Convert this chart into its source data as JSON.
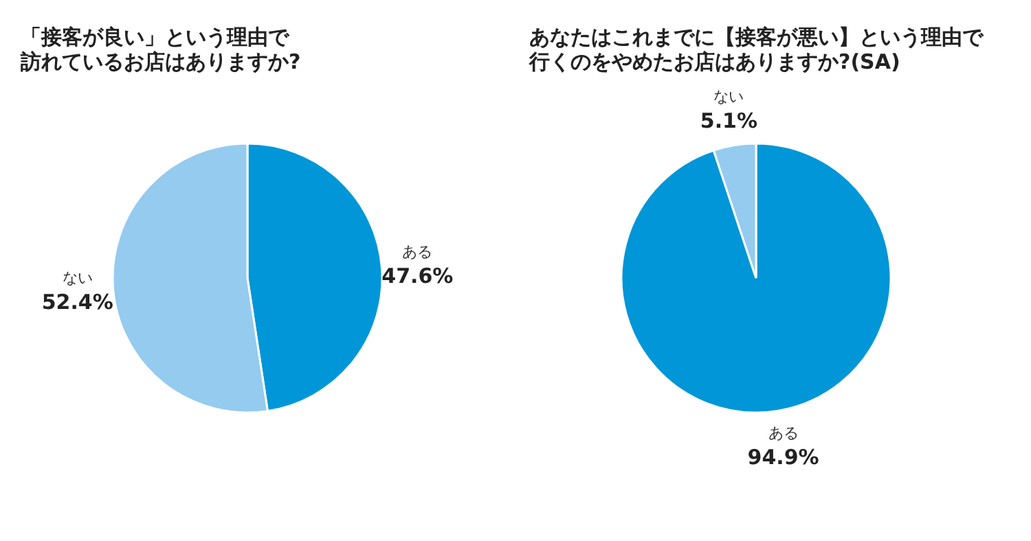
{
  "chart_data": [
    {
      "type": "pie",
      "title": "「接客が良い」という理由で",
      "subtitle": "訪れているお店はありますか?",
      "categories": [
        "ある",
        "ない"
      ],
      "values": [
        47.6,
        52.4
      ],
      "colors": [
        "#0096d8",
        "#95cbef"
      ],
      "value_labels": [
        "47.6%",
        "52.4%"
      ],
      "legend": false
    },
    {
      "type": "pie",
      "title": "あなたはこれまでに【接客が悪い】という理由で",
      "subtitle": "行くのをやめたお店はありますか?(SA)",
      "categories": [
        "ある",
        "ない"
      ],
      "values": [
        94.9,
        5.1
      ],
      "colors": [
        "#0096d8",
        "#95cbef"
      ],
      "value_labels": [
        "94.9%",
        "5.1%"
      ],
      "legend": false
    }
  ]
}
